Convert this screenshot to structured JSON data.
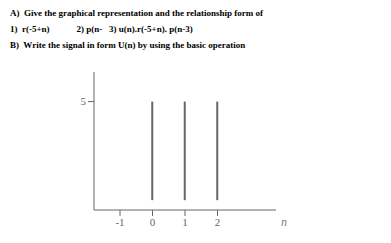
{
  "chart_data": {
    "type": "stem",
    "annotations": [
      "A)  Give the graphical representation and the relationship form of",
      "1)  r(-5+n)            2) p(n-   3) u(n).r(-5+n). p(n-3)",
      "B)  Write the signal in form U(n) by using the basic operation"
    ],
    "x": [
      0,
      1,
      2
    ],
    "values": [
      5,
      5,
      5
    ],
    "xlim": [
      -1.8,
      3.8
    ],
    "xticks": [
      -1,
      0,
      1,
      2
    ],
    "ylim": [
      -0.5,
      6.5
    ],
    "yticks": [
      5
    ],
    "x_label": "n",
    "color": "#666666",
    "grid": false
  }
}
